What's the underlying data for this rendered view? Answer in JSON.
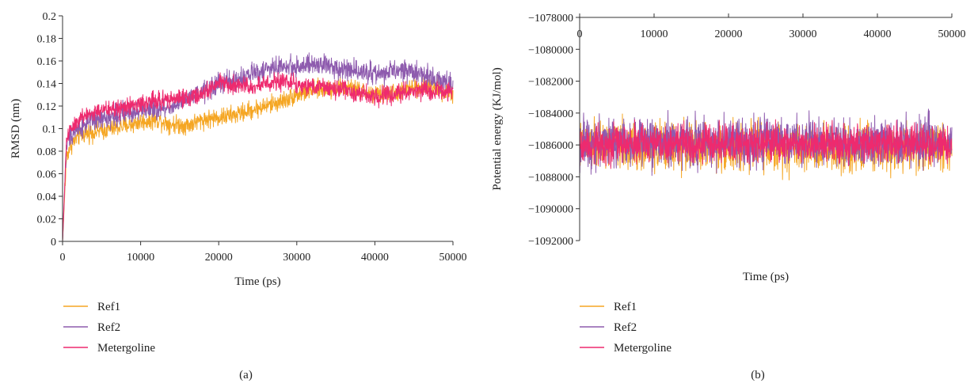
{
  "colors": {
    "ref1": "#F5A623",
    "ref2": "#8E5BAE",
    "metergoline": "#EE2A6E"
  },
  "chart_data": [
    {
      "id": "a",
      "type": "line",
      "panel_label": "(a)",
      "xlabel": "Time (ps)",
      "ylabel": "RMSD (nm)",
      "xlim": [
        0,
        50000
      ],
      "ylim": [
        0,
        0.2
      ],
      "x_ticks": [
        "0",
        "10000",
        "20000",
        "30000",
        "40000",
        "50000"
      ],
      "y_ticks": [
        "0",
        "0.02",
        "0.04",
        "0.06",
        "0.08",
        "0.1",
        "0.12",
        "0.14",
        "0.16",
        "0.18",
        "0.2"
      ],
      "legend_position": "bottom-left",
      "series": [
        {
          "name": "Ref1",
          "color": "#F5A623",
          "x": [
            0,
            500,
            1000,
            2000,
            3000,
            5000,
            7000,
            9000,
            10000,
            12000,
            14000,
            16000,
            18000,
            20000,
            22000,
            24000,
            26000,
            28000,
            30000,
            32000,
            34000,
            36000,
            38000,
            40000,
            42000,
            44000,
            46000,
            48000,
            50000
          ],
          "y": [
            0,
            0.075,
            0.085,
            0.093,
            0.096,
            0.098,
            0.101,
            0.104,
            0.106,
            0.108,
            0.104,
            0.103,
            0.108,
            0.11,
            0.112,
            0.116,
            0.12,
            0.124,
            0.13,
            0.134,
            0.136,
            0.136,
            0.134,
            0.13,
            0.131,
            0.134,
            0.138,
            0.136,
            0.13
          ],
          "noise": 0.007
        },
        {
          "name": "Ref2",
          "color": "#8E5BAE",
          "x": [
            0,
            500,
            1000,
            2000,
            3000,
            5000,
            7000,
            9000,
            10000,
            12000,
            14000,
            16000,
            18000,
            20000,
            22000,
            24000,
            26000,
            28000,
            30000,
            32000,
            34000,
            36000,
            38000,
            40000,
            42000,
            44000,
            46000,
            48000,
            50000
          ],
          "y": [
            0,
            0.085,
            0.095,
            0.1,
            0.105,
            0.108,
            0.112,
            0.115,
            0.118,
            0.116,
            0.12,
            0.125,
            0.132,
            0.14,
            0.142,
            0.148,
            0.152,
            0.155,
            0.155,
            0.156,
            0.156,
            0.153,
            0.152,
            0.148,
            0.15,
            0.152,
            0.148,
            0.144,
            0.138
          ],
          "noise": 0.008
        },
        {
          "name": "Metergoline",
          "color": "#EE2A6E",
          "x": [
            0,
            500,
            1000,
            2000,
            3000,
            5000,
            7000,
            9000,
            10000,
            12000,
            14000,
            16000,
            18000,
            20000,
            22000,
            24000,
            26000,
            28000,
            30000,
            32000,
            34000,
            36000,
            38000,
            40000,
            42000,
            44000,
            46000,
            48000,
            50000
          ],
          "y": [
            0,
            0.09,
            0.1,
            0.108,
            0.112,
            0.116,
            0.118,
            0.12,
            0.122,
            0.125,
            0.126,
            0.128,
            0.13,
            0.14,
            0.138,
            0.137,
            0.14,
            0.142,
            0.14,
            0.138,
            0.136,
            0.134,
            0.132,
            0.128,
            0.13,
            0.133,
            0.135,
            0.134,
            0.132
          ],
          "noise": 0.007
        }
      ]
    },
    {
      "id": "b",
      "type": "line",
      "panel_label": "(b)",
      "xlabel": "Time (ps)",
      "ylabel": "Potential energy (KJ/mol)",
      "xlim": [
        0,
        50000
      ],
      "ylim": [
        -1092000,
        -1078000
      ],
      "x_ticks": [
        "0",
        "10000",
        "20000",
        "30000",
        "40000",
        "50000"
      ],
      "y_ticks": [
        "−1078000",
        "−1080000",
        "−1082000",
        "−1084000",
        "−1086000",
        "−1088000",
        "−1090000",
        "−1092000"
      ],
      "x_axis_position": "top",
      "legend_position": "bottom-left",
      "series": [
        {
          "name": "Ref1",
          "color": "#F5A623",
          "x": [
            0,
            50000
          ],
          "y": [
            -1086100,
            -1086100
          ],
          "noise": 1300
        },
        {
          "name": "Ref2",
          "color": "#8E5BAE",
          "x": [
            0,
            50000
          ],
          "y": [
            -1085800,
            -1085800
          ],
          "noise": 1300
        },
        {
          "name": "Metergoline",
          "color": "#EE2A6E",
          "x": [
            0,
            50000
          ],
          "y": [
            -1085900,
            -1085900
          ],
          "noise": 1000
        }
      ]
    }
  ]
}
